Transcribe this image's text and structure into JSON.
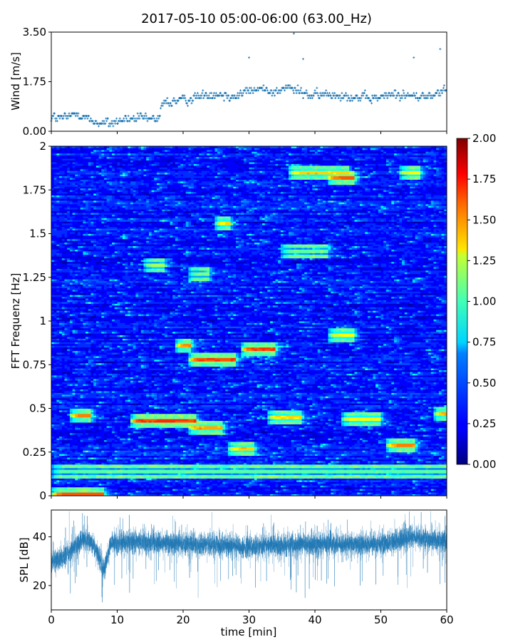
{
  "title": "2017-05-10 05:00-06:00 (63.00_Hz)",
  "chart_data": [
    {
      "type": "scatter",
      "panel": "wind",
      "xlabel": "",
      "ylabel": "Wind [m/s]",
      "xlim": [
        0,
        60
      ],
      "ylim": [
        0,
        3.5
      ],
      "yticks": [
        "0.00",
        "1.75",
        "3.50"
      ],
      "yticks_values": [
        0,
        1.75,
        3.5
      ],
      "color": "#1f77b4",
      "marker": "+",
      "series": [
        {
          "x_step_min": 0.1,
          "y_profile_x": [
            0,
            2,
            4,
            6,
            8,
            10,
            12,
            14,
            16,
            17,
            20,
            22,
            24,
            26,
            28,
            30,
            32,
            34,
            36,
            37,
            38,
            40,
            42,
            44,
            46,
            48,
            50,
            52,
            54,
            56,
            58,
            60
          ],
          "y_profile_mean": [
            0.5,
            0.45,
            0.65,
            0.35,
            0.25,
            0.35,
            0.45,
            0.45,
            0.4,
            1.0,
            1.1,
            1.2,
            1.35,
            1.3,
            1.25,
            1.45,
            1.5,
            1.4,
            1.55,
            1.45,
            1.35,
            1.25,
            1.3,
            1.3,
            1.2,
            1.15,
            1.2,
            1.35,
            1.25,
            1.2,
            1.3,
            1.45
          ],
          "y_spread": 0.45
        }
      ]
    },
    {
      "type": "heatmap",
      "panel": "spectrogram",
      "xlabel": "",
      "ylabel": "FFT Frequenz [Hz]",
      "xlim": [
        0,
        60
      ],
      "ylim": [
        0,
        2
      ],
      "yticks": [
        "0",
        "0.25",
        "0.5",
        "0.75",
        "1",
        "1.25",
        "1.5",
        "1.75",
        "2"
      ],
      "yticks_values": [
        0,
        0.25,
        0.5,
        0.75,
        1,
        1.25,
        1.5,
        1.75,
        2
      ],
      "colormap": "jet",
      "colorbar": {
        "range": [
          0,
          2
        ],
        "ticks": [
          "0.00",
          "0.25",
          "0.50",
          "0.75",
          "1.00",
          "1.25",
          "1.50",
          "1.75",
          "2.00"
        ],
        "ticks_values": [
          0,
          0.25,
          0.5,
          0.75,
          1,
          1.25,
          1.5,
          1.75,
          2
        ]
      },
      "grid": {
        "time_bins": 150,
        "freq_bins": 200
      },
      "hotspots": [
        {
          "t0": 0,
          "t1": 8,
          "f": 0.01,
          "v": 1.9
        },
        {
          "t0": 3,
          "t1": 6,
          "f": 0.46,
          "v": 1.8
        },
        {
          "t0": 12,
          "t1": 22,
          "f": 0.43,
          "v": 1.95
        },
        {
          "t0": 19,
          "t1": 21,
          "f": 0.86,
          "v": 1.8
        },
        {
          "t0": 21,
          "t1": 26,
          "f": 0.39,
          "v": 1.7
        },
        {
          "t0": 21,
          "t1": 28,
          "f": 0.78,
          "v": 1.95
        },
        {
          "t0": 25,
          "t1": 27,
          "f": 1.56,
          "v": 1.6
        },
        {
          "t0": 29,
          "t1": 34,
          "f": 0.84,
          "v": 1.95
        },
        {
          "t0": 27,
          "t1": 31,
          "f": 0.27,
          "v": 1.6
        },
        {
          "t0": 33,
          "t1": 38,
          "f": 0.45,
          "v": 1.6
        },
        {
          "t0": 36,
          "t1": 45,
          "f": 1.85,
          "v": 1.6
        },
        {
          "t0": 42,
          "t1": 46,
          "f": 1.82,
          "v": 1.9
        },
        {
          "t0": 42,
          "t1": 46,
          "f": 0.92,
          "v": 1.5
        },
        {
          "t0": 44,
          "t1": 50,
          "f": 0.44,
          "v": 1.5
        },
        {
          "t0": 51,
          "t1": 55,
          "f": 0.29,
          "v": 1.8
        },
        {
          "t0": 53,
          "t1": 56,
          "f": 1.85,
          "v": 1.5
        },
        {
          "t0": 58,
          "t1": 60,
          "f": 0.47,
          "v": 1.7
        },
        {
          "t0": 0,
          "t1": 60,
          "f": 0.14,
          "v": 1.1
        },
        {
          "t0": 14,
          "t1": 17,
          "f": 1.32,
          "v": 1.3
        },
        {
          "t0": 21,
          "t1": 24,
          "f": 1.27,
          "v": 1.2
        },
        {
          "t0": 35,
          "t1": 42,
          "f": 1.4,
          "v": 1.1
        }
      ]
    },
    {
      "type": "line",
      "panel": "spl",
      "xlabel": "time [min]",
      "ylabel": "SPL [dB]",
      "xlim": [
        0,
        60
      ],
      "ylim": [
        10,
        51
      ],
      "yticks": [
        "20",
        "40"
      ],
      "yticks_values": [
        20,
        40
      ],
      "xticks": [
        "0",
        "10",
        "20",
        "30",
        "40",
        "50",
        "60"
      ],
      "xticks_values": [
        0,
        10,
        20,
        30,
        40,
        50,
        60
      ],
      "color": "#1f77b4",
      "series": [
        {
          "x_step_min": 0.02,
          "mean_profile_x": [
            0,
            2,
            4,
            5,
            6,
            7,
            7.5,
            8,
            9,
            12,
            20,
            30,
            40,
            50,
            55,
            57,
            60
          ],
          "mean_profile_y": [
            29,
            32,
            37,
            39,
            38,
            34,
            29,
            26,
            37,
            38,
            37,
            36,
            37,
            37,
            40,
            39,
            38
          ],
          "noise_amplitude": 7
        }
      ]
    }
  ]
}
